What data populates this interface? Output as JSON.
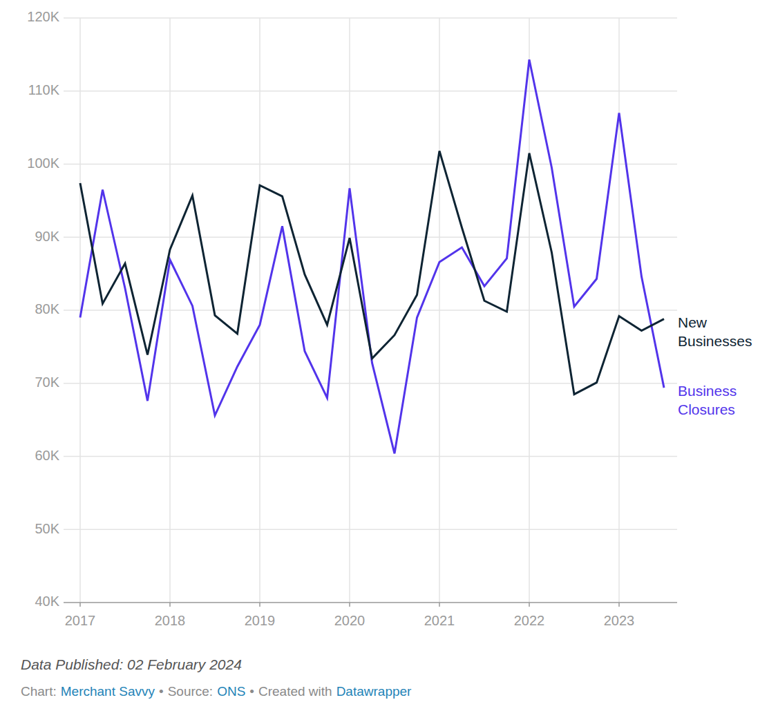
{
  "chart_data": {
    "type": "line",
    "categories": [
      "2017",
      null,
      null,
      null,
      "2018",
      null,
      null,
      null,
      "2019",
      null,
      null,
      null,
      "2020",
      null,
      null,
      null,
      "2021",
      null,
      null,
      null,
      "2022",
      null,
      null,
      null,
      "2023",
      null,
      null
    ],
    "series": [
      {
        "name": "New Businesses",
        "color": "#0e2433",
        "values": [
          97400,
          80900,
          86400,
          73900,
          88300,
          95700,
          79300,
          76800,
          97100,
          95600,
          84900,
          78000,
          89900,
          73400,
          76600,
          82100,
          101800,
          91300,
          81300,
          79800,
          101500,
          87900,
          68500,
          70100,
          79200,
          77200,
          78800
        ]
      },
      {
        "name": "Business Closures",
        "color": "#5234eb",
        "values": [
          79000,
          96500,
          83000,
          67600,
          86900,
          80600,
          65600,
          72300,
          78000,
          91500,
          74400,
          68000,
          96700,
          72800,
          60400,
          79000,
          86600,
          88600,
          83300,
          87100,
          114300,
          99500,
          80500,
          84300,
          107000,
          84600,
          69400
        ]
      }
    ],
    "ylim": [
      40000,
      120000
    ],
    "yticks": [
      {
        "value": 40000,
        "label": "40K"
      },
      {
        "value": 50000,
        "label": "50K"
      },
      {
        "value": 60000,
        "label": "60K"
      },
      {
        "value": 70000,
        "label": "70K"
      },
      {
        "value": 80000,
        "label": "80K"
      },
      {
        "value": 90000,
        "label": "90K"
      },
      {
        "value": 100000,
        "label": "100K"
      },
      {
        "value": 110000,
        "label": "110K"
      },
      {
        "value": 120000,
        "label": "120K"
      }
    ],
    "grid": true,
    "caption": "Data Published: 02 February 2024",
    "credits": [
      {
        "label": "Chart:",
        "name": "Merchant Savvy"
      },
      {
        "label": "Source:",
        "name": "ONS"
      },
      {
        "label": "Created with",
        "name": "Datawrapper"
      }
    ],
    "credit_separator": "•"
  }
}
